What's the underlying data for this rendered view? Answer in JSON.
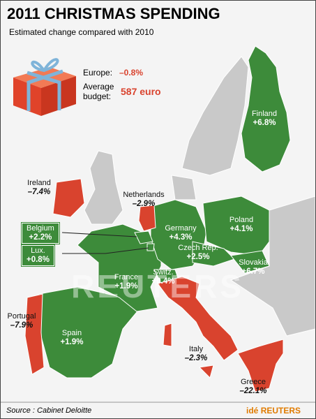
{
  "header": {
    "title": "2011 CHRISTMAS SPENDING",
    "subtitle": "Estimated change compared with 2010"
  },
  "summary": {
    "europe_label": "Europe:",
    "europe_value": "–0.8%",
    "budget_label": "Average budget:",
    "budget_value": "587 euro"
  },
  "countries": [
    {
      "name": "Finland",
      "change": "+6.8%"
    },
    {
      "name": "Ireland",
      "change": "–7.4%"
    },
    {
      "name": "Netherlands",
      "change": "–2.9%"
    },
    {
      "name": "Belgium",
      "change": "+2.2%"
    },
    {
      "name": "Lux.",
      "change": "+0.8%"
    },
    {
      "name": "Germany",
      "change": "+4.3%"
    },
    {
      "name": "Poland",
      "change": "+4.1%"
    },
    {
      "name": "Czech Rep.",
      "change": "+2.5%"
    },
    {
      "name": "Slovakia",
      "change": "+6.7%"
    },
    {
      "name": "France",
      "change": "+1.9%"
    },
    {
      "name": "Switz.",
      "change": "+0.4%"
    },
    {
      "name": "Portugal",
      "change": "–7.9%"
    },
    {
      "name": "Spain",
      "change": "+1.9%"
    },
    {
      "name": "Italy",
      "change": "–2.3%"
    },
    {
      "name": "Greece",
      "change": "–22.1%"
    }
  ],
  "footer": {
    "source": "Source : Cabinet Deloitte",
    "logo_prefix": "idé",
    "logo": "REUTERS",
    "watermark": "REUTERS"
  }
}
